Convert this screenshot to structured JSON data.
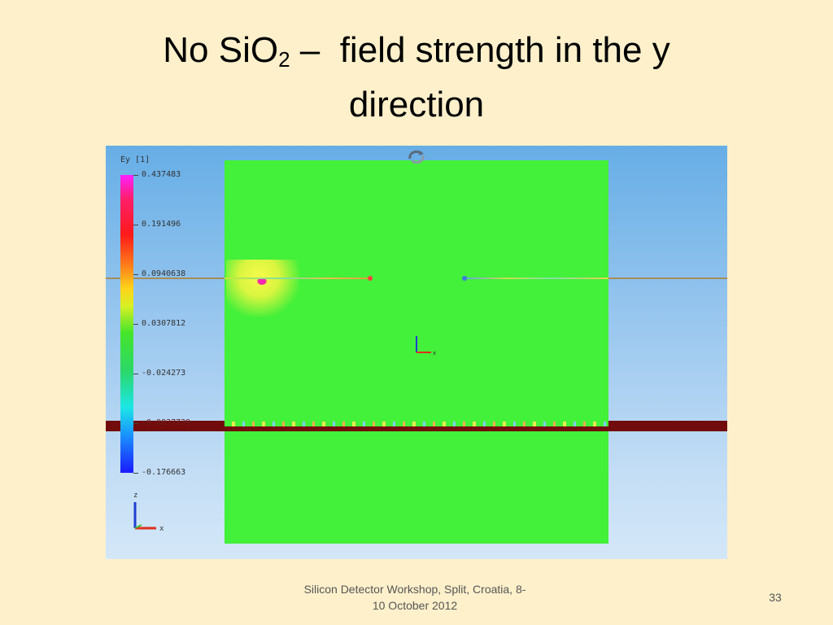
{
  "slide": {
    "title_main": "No SiO",
    "title_sub": "2",
    "title_rest": " –  field strength in the y",
    "title_line2": "direction",
    "footer": "Silicon Detector Workshop, Split, Croatia, 8-\n10 October 2012",
    "page_number": "33"
  },
  "simulation": {
    "legend_title": "Ey [1]",
    "ticks": [
      "0.437483",
      "0.191496",
      "0.0940638",
      "0.0307812",
      "-0.024273",
      "-0.0837739",
      "-0.176663"
    ],
    "axis_labels": {
      "z": "z",
      "x": "x"
    },
    "colors": {
      "background_top": "#66aee6",
      "field_green": "#43f03a",
      "band": "#720b0b",
      "slide_bg": "#fdf0cb"
    }
  }
}
